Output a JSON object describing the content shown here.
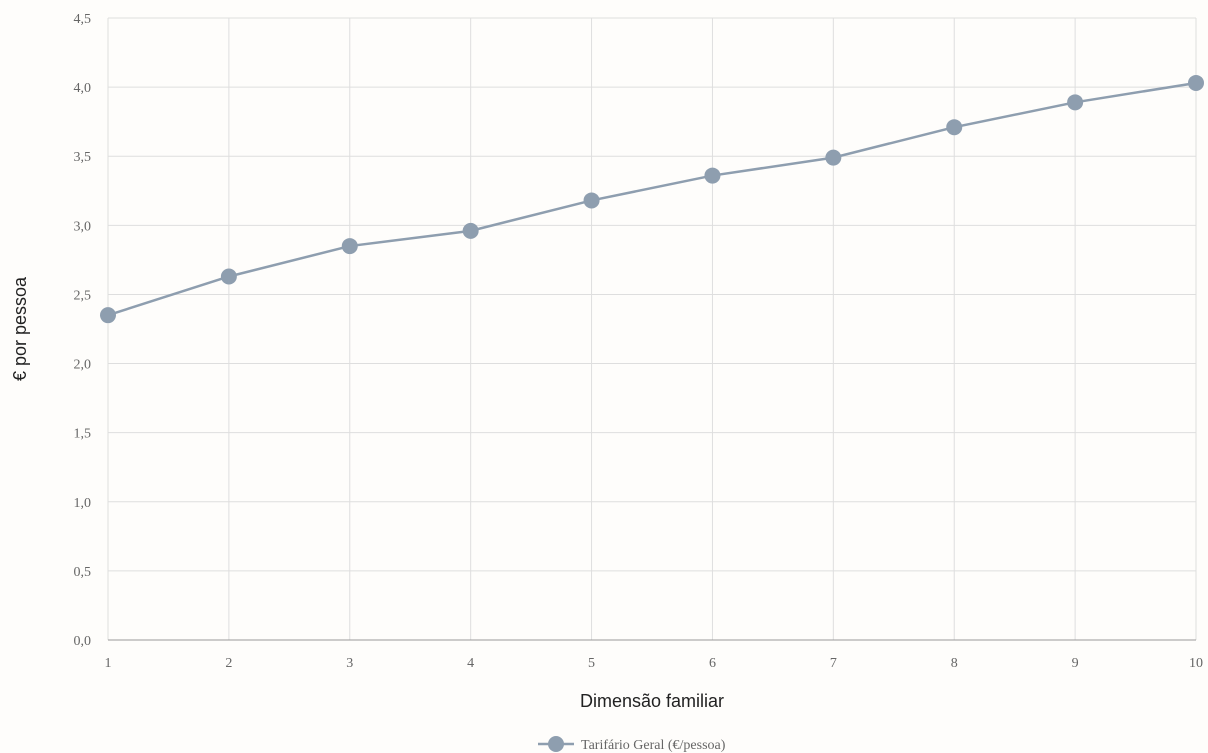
{
  "chart_data": {
    "type": "line",
    "title": "",
    "xlabel": "Dimensão familiar",
    "ylabel": "€ por pessoa",
    "x": [
      1,
      2,
      3,
      4,
      5,
      6,
      7,
      8,
      9,
      10
    ],
    "x_tick_labels": [
      "1",
      "2",
      "3",
      "4",
      "5",
      "6",
      "7",
      "8",
      "9",
      "10"
    ],
    "xlim": [
      1,
      10
    ],
    "ylim": [
      0,
      4.5
    ],
    "y_ticks": [
      0,
      0.5,
      1.0,
      1.5,
      2.0,
      2.5,
      3.0,
      3.5,
      4.0,
      4.5
    ],
    "y_tick_labels": [
      "0,0",
      "0,5",
      "1,0",
      "1,5",
      "2,0",
      "2,5",
      "3,0",
      "3,5",
      "4,0",
      "4,5"
    ],
    "grid": true,
    "legend_position": "bottom-center",
    "series": [
      {
        "name": "Tarifário Geral (€/pessoa)",
        "color": "#8e9eaf",
        "values": [
          2.35,
          2.63,
          2.85,
          2.96,
          3.18,
          3.36,
          3.49,
          3.71,
          3.89,
          4.03
        ]
      }
    ]
  }
}
